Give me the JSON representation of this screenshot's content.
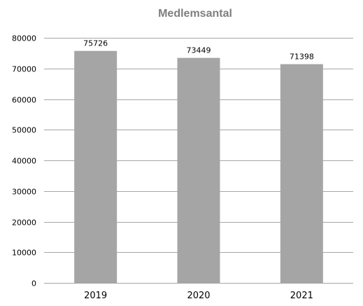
{
  "chart_data": {
    "type": "bar",
    "title": "Medlemsantal",
    "xlabel": "",
    "ylabel": "",
    "categories": [
      "2019",
      "2020",
      "2021"
    ],
    "values": [
      75726,
      73449,
      71398
    ],
    "data_labels": [
      "75726",
      "73449",
      "71398"
    ],
    "ylim": [
      0,
      80000
    ],
    "yticks": [
      0,
      10000,
      20000,
      30000,
      40000,
      50000,
      60000,
      70000,
      80000
    ],
    "ytick_labels": [
      "0",
      "10000",
      "20000",
      "30000",
      "40000",
      "50000",
      "60000",
      "70000",
      "80000"
    ],
    "grid": true,
    "legend": "none",
    "colors": {
      "bar": "#a5a5a5",
      "grid": "#a6a6a6",
      "title": "#7f7f7f",
      "text": "#000000"
    }
  }
}
